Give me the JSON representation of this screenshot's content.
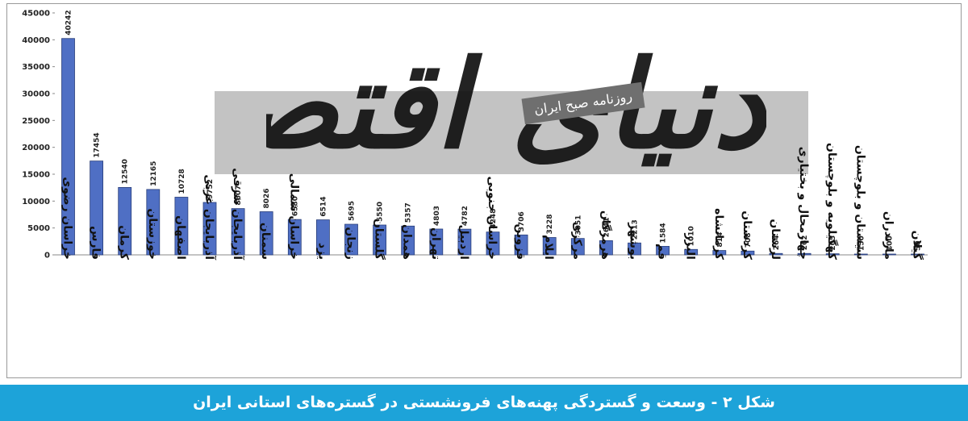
{
  "caption": "شکل ۲ - وسعت و گستردگی پهنه‌های فرونشستی در گستره‌های استانی ایران",
  "watermark": {
    "logo": "دنیای اقتصاد",
    "subtitle": "روزنامه صبح ایران"
  },
  "colors": {
    "bar": "#4f6fc4",
    "bar_border": "#2a3f7a",
    "caption_bg": "#1da3d9"
  },
  "chart_data": {
    "type": "bar",
    "title": "",
    "xlabel": "",
    "ylabel": "",
    "ylim": [
      0,
      45000
    ],
    "yticks": [
      0,
      5000,
      10000,
      15000,
      20000,
      25000,
      30000,
      35000,
      40000,
      45000
    ],
    "grid": false,
    "categories": [
      "خراسان رضوی",
      "فارس",
      "کرمان",
      "خوزستان",
      "اصفهان",
      "آذربایجان غربی",
      "آذربایجان شرقی",
      "سمنان",
      "خراسان شمالی",
      "یزد",
      "زنجان",
      "گلستان",
      "همدان",
      "تهران",
      "اردبیل",
      "خراسان جنوبی",
      "قزوین",
      "ایلام",
      "مرکزی",
      "هرمزگان",
      "بوشهر",
      "قم",
      "البرز",
      "کرمانشاه",
      "کردستان",
      "لرستان",
      "چهارمحال و بختیاری",
      "کهگیلویه و بلوچستان",
      "سیستان و بلوچستان",
      "مازندران",
      "گیلان"
    ],
    "values": [
      40242,
      17454,
      12540,
      12165,
      10728,
      9752,
      8607,
      8026,
      6580,
      6514,
      5695,
      5550,
      5357,
      4803,
      4782,
      4248,
      3706,
      3228,
      3051,
      2641,
      2213,
      1584,
      1010,
      814,
      708,
      264,
      262,
      205,
      150,
      100,
      50
    ],
    "data_labels": [
      "40242",
      "17454",
      "12540",
      "12165",
      "10728",
      "9752",
      "8607",
      "8026",
      "6580",
      "6514",
      "5695",
      "5550",
      "5357",
      "4803",
      "4782",
      "4248",
      "3706",
      "3228",
      "3051",
      "2641",
      "2213",
      "1584",
      "1010",
      "814",
      "708",
      "264",
      "262",
      "205",
      "150",
      "100",
      "50"
    ]
  }
}
